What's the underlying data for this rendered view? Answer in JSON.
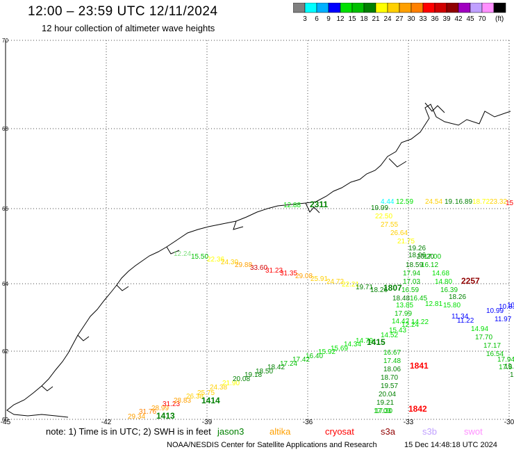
{
  "header": {
    "title": "12:00 – 23:59 UTC 12/11/2024",
    "subtitle": "12 hour collection of altimeter wave heights"
  },
  "scale": {
    "colors": [
      "#808080",
      "#00ffff",
      "#00b0ff",
      "#0000ff",
      "#00e000",
      "#00c000",
      "#008000",
      "#ffff00",
      "#ffd000",
      "#ffa000",
      "#ff8000",
      "#ff0000",
      "#d00000",
      "#900000",
      "#a000c0",
      "#c0a0ff",
      "#ff90ff",
      "#000000"
    ],
    "labels": [
      "3",
      "6",
      "9",
      "12",
      "15",
      "18",
      "21",
      "24",
      "27",
      "30",
      "33",
      "36",
      "39",
      "42",
      "45",
      "70"
    ],
    "unit": "(ft)"
  },
  "axes": {
    "lat_labels": [
      "70",
      "68",
      "66",
      "64",
      "62",
      "60"
    ],
    "lon_labels": [
      "-45",
      "-42",
      "-39",
      "-36",
      "-33",
      "-30"
    ]
  },
  "tracks": [
    {
      "name": "along-coast",
      "color_scale": "mixed",
      "points": [
        {
          "text": "12.24",
          "color": "#80e080"
        },
        {
          "text": "15.50",
          "color": "#00c000"
        },
        {
          "text": "22.36",
          "color": "#ffff00"
        },
        {
          "text": "24.30",
          "color": "#ffd000"
        },
        {
          "text": "29.88",
          "color": "#ffa000"
        },
        {
          "text": "33.60",
          "color": "#d00000"
        },
        {
          "text": "31.23",
          "color": "#ff0000"
        },
        {
          "text": "31.35",
          "color": "#ff0000"
        },
        {
          "text": "29.08",
          "color": "#ffa000"
        },
        {
          "text": "25.91",
          "color": "#ffd000"
        },
        {
          "text": "24.72",
          "color": "#ffd000"
        },
        {
          "text": "22.21",
          "color": "#ffff00"
        },
        {
          "text": "19.71",
          "color": "#008000"
        },
        {
          "text": "18.26",
          "color": "#008000"
        },
        {
          "text": "1807",
          "color": "#008000"
        }
      ]
    },
    {
      "name": "diagonal-lower",
      "points": [
        {
          "text": "29.34",
          "color": "#ffa000"
        },
        {
          "text": "1413",
          "color": "#008000"
        },
        {
          "text": "31.76",
          "color": "#ff8000"
        },
        {
          "text": "28.99",
          "color": "#ffa000"
        },
        {
          "text": "31.23",
          "color": "#ff0000"
        },
        {
          "text": "28.83",
          "color": "#ffa000"
        },
        {
          "text": "26.38",
          "color": "#ffd000"
        },
        {
          "text": "25.75",
          "color": "#ffd000"
        },
        {
          "text": "1414",
          "color": "#008000"
        },
        {
          "text": "24.38",
          "color": "#ffd000"
        },
        {
          "text": "21.90",
          "color": "#ffff00"
        },
        {
          "text": "20.08",
          "color": "#008000"
        },
        {
          "text": "19.18",
          "color": "#008000"
        },
        {
          "text": "18.50",
          "color": "#008000"
        },
        {
          "text": "18.42",
          "color": "#008000"
        },
        {
          "text": "17.24",
          "color": "#00c000"
        },
        {
          "text": "17.42",
          "color": "#00c000"
        },
        {
          "text": "16.40",
          "color": "#00c000"
        },
        {
          "text": "15.92",
          "color": "#00e000"
        },
        {
          "text": "15.69",
          "color": "#00e000"
        },
        {
          "text": "14.34",
          "color": "#00e000"
        },
        {
          "text": "14.79",
          "color": "#00e000"
        },
        {
          "text": "1415",
          "color": "#008000"
        },
        {
          "text": "14.52",
          "color": "#00e000"
        },
        {
          "text": "15.43",
          "color": "#00e000"
        },
        {
          "text": "14.42",
          "color": "#00e000"
        },
        {
          "text": "12.24",
          "color": "#00e000"
        },
        {
          "text": "14.22",
          "color": "#00e000"
        },
        {
          "text": "11.22",
          "color": "#0000ff"
        },
        {
          "text": "11.34",
          "color": "#0000ff"
        },
        {
          "text": "10.99",
          "color": "#0000ff"
        },
        {
          "text": "10.81",
          "color": "#0000ff"
        }
      ]
    },
    {
      "name": "vertical-track",
      "points": [
        {
          "text": "4.44",
          "color": "#00ffff"
        },
        {
          "text": "12.59",
          "color": "#00e000"
        },
        {
          "text": "19.99",
          "color": "#008000"
        },
        {
          "text": "22.50",
          "color": "#ffff00"
        },
        {
          "text": "27.55",
          "color": "#ffd000"
        },
        {
          "text": "26.64",
          "color": "#ffd000"
        },
        {
          "text": "21.75",
          "color": "#ffff00"
        },
        {
          "text": "19.26",
          "color": "#008000"
        },
        {
          "text": "18.06",
          "color": "#008000"
        },
        {
          "text": "20.20",
          "color": "#008000"
        },
        {
          "text": "17.00",
          "color": "#00c000"
        },
        {
          "text": "18.59",
          "color": "#008000"
        },
        {
          "text": "16.12",
          "color": "#00c000"
        },
        {
          "text": "17.94",
          "color": "#00c000"
        },
        {
          "text": "14.68",
          "color": "#00e000"
        },
        {
          "text": "17.03",
          "color": "#00c000"
        },
        {
          "text": "14.80",
          "color": "#00e000"
        },
        {
          "text": "2257",
          "color": "#900000"
        },
        {
          "text": "16.59",
          "color": "#00c000"
        },
        {
          "text": "16.39",
          "color": "#00c000"
        },
        {
          "text": "18.48",
          "color": "#008000"
        },
        {
          "text": "16.45",
          "color": "#00c000"
        },
        {
          "text": "18.26",
          "color": "#008000"
        },
        {
          "text": "13.85",
          "color": "#00e000"
        },
        {
          "text": "12.81",
          "color": "#00e000"
        },
        {
          "text": "15.80",
          "color": "#00e000"
        },
        {
          "text": "17.99",
          "color": "#00c000"
        },
        {
          "text": "14.94",
          "color": "#00e000"
        },
        {
          "text": "17.70",
          "color": "#00c000"
        },
        {
          "text": "17.17",
          "color": "#00c000"
        },
        {
          "text": "16.54",
          "color": "#00c000"
        },
        {
          "text": "17.94",
          "color": "#00c000"
        },
        {
          "text": "17.6",
          "color": "#00c000"
        },
        {
          "text": "16.67",
          "color": "#00c000"
        },
        {
          "text": "17.48",
          "color": "#00c000"
        },
        {
          "text": "1841",
          "color": "#ff0000"
        },
        {
          "text": "18.06",
          "color": "#008000"
        },
        {
          "text": "18.70",
          "color": "#008000"
        },
        {
          "text": "19.57",
          "color": "#008000"
        },
        {
          "text": "20.04",
          "color": "#008000"
        },
        {
          "text": "19.21",
          "color": "#008000"
        },
        {
          "text": "17.30",
          "color": "#00c000"
        },
        {
          "text": "17.03",
          "color": "#00c000"
        },
        {
          "text": "1842",
          "color": "#ff0000"
        },
        {
          "text": "11.97",
          "color": "#0000ff"
        },
        {
          "text": "19.",
          "color": "#008000"
        },
        {
          "text": "19",
          "color": "#008000"
        },
        {
          "text": "10",
          "color": "#0000ff"
        }
      ]
    },
    {
      "name": "top-track",
      "points": [
        {
          "text": "24.54",
          "color": "#ffd000"
        },
        {
          "text": "19.",
          "color": "#008000"
        },
        {
          "text": "16.89",
          "color": "#008000"
        },
        {
          "text": "18.72",
          "color": "#ffff00"
        },
        {
          "text": "23.32",
          "color": "#ffd000"
        },
        {
          "text": "12.88",
          "color": "#00e000"
        },
        {
          "text": "2311",
          "color": "#008000"
        },
        {
          "text": "15.54",
          "color": "#ff0000"
        }
      ]
    }
  ],
  "legend": {
    "note": "note: 1) Time is in UTC; 2) SWH is in feet",
    "satellites": [
      {
        "name": "jason3",
        "color": "#008000"
      },
      {
        "name": "altika",
        "color": "#ffa000"
      },
      {
        "name": "cryosat",
        "color": "#ff0000"
      },
      {
        "name": "s3a",
        "color": "#900000"
      },
      {
        "name": "s3b",
        "color": "#c0a0ff"
      },
      {
        "name": "swot",
        "color": "#ff90ff"
      }
    ]
  },
  "footer": {
    "credit": "NOAA/NESDIS Center for Satellite Applications and Research",
    "timestamp": "15 Dec 14:48:18 UTC 2024"
  }
}
